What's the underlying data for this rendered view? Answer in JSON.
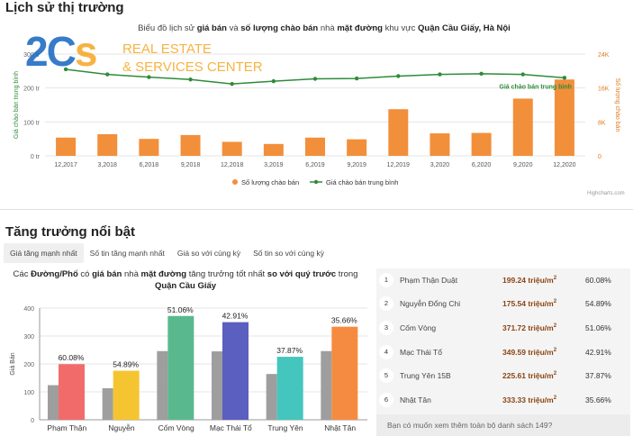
{
  "section1": {
    "title": "Lịch sử thị trường",
    "chart_title_parts": [
      "Biểu đồ lịch sử ",
      "giá bán",
      " và ",
      "số lượng chào bán",
      " nhà ",
      "mặt đường",
      " khu vực ",
      "Quận Cầu Giấy, Hà Nội"
    ],
    "credit": "Highcharts.com"
  },
  "logo": {
    "big_a": "2C",
    "big_b": "s",
    "line1": "REAL ESTATE",
    "line2": "& SERVICES CENTER"
  },
  "section2": {
    "title": "Tăng trưởng nổi bật",
    "tabs": [
      "Giá tăng mạnh nhất",
      "Số tin tăng mạnh nhất",
      "Giá so với cùng kỳ",
      "Số tin so với cùng kỳ"
    ],
    "desc_parts": [
      "Các ",
      "Đường/Phố",
      " có ",
      "giá bán",
      " nhà ",
      "mặt đường",
      " tăng trưởng tốt nhất ",
      "so với quý trước",
      " trong"
    ],
    "desc_line2": "Quận Cầu Giấy",
    "ranking": [
      {
        "rank": "1",
        "name": "Phạm Thận Duật",
        "price": "199.24 triệu/m",
        "pct": "60.08%"
      },
      {
        "rank": "2",
        "name": "Nguyễn Đổng Chi",
        "price": "175.54 triệu/m",
        "pct": "54.89%"
      },
      {
        "rank": "3",
        "name": "Cốm Vòng",
        "price": "371.72 triệu/m",
        "pct": "51.06%"
      },
      {
        "rank": "4",
        "name": "Mạc Thái Tổ",
        "price": "349.59 triệu/m",
        "pct": "42.91%"
      },
      {
        "rank": "5",
        "name": "Trung Yên 15B",
        "price": "225.61 triệu/m",
        "pct": "37.87%"
      },
      {
        "rank": "6",
        "name": "Nhật Tân",
        "price": "333.33 triệu/m",
        "pct": "35.66%"
      }
    ],
    "sup": "2",
    "ranking_footer": "Bạn có muốn xem thêm toàn bộ danh sách 149?"
  },
  "chart_data": [
    {
      "type": "bar+line",
      "title": "Biểu đồ lịch sử giá bán và số lượng chào bán nhà mặt đường khu vực Quận Cầu Giấy, Hà Nội",
      "categories": [
        "12,2017",
        "3,2018",
        "6,2018",
        "9,2018",
        "12,2018",
        "3,2019",
        "6,2019",
        "9,2019",
        "12,2019",
        "3,2020",
        "6,2020",
        "9,2020",
        "12,2020"
      ],
      "left_axis": {
        "label": "Giá chào bán trung bình",
        "ticks": [
          "0 tr",
          "100 tr",
          "200 tr",
          "300 tr"
        ],
        "range": [
          0,
          300
        ]
      },
      "right_axis": {
        "label": "Số lượng chào bán",
        "ticks": [
          "0",
          "8K",
          "16K",
          "24K"
        ],
        "range": [
          0,
          24000
        ]
      },
      "series": [
        {
          "name": "Số lượng chào bán",
          "type": "bar",
          "axis": "right",
          "color": "#f28f3b",
          "values": [
            4300,
            5100,
            4000,
            4900,
            3300,
            2800,
            4300,
            3900,
            11000,
            5300,
            5400,
            13500,
            18000
          ]
        },
        {
          "name": "Giá chào bán trung bình",
          "type": "line",
          "axis": "left",
          "color": "#2e8b3a",
          "values": [
            255,
            240,
            232,
            225,
            212,
            220,
            227,
            228,
            235,
            240,
            242,
            240,
            230
          ]
        }
      ],
      "series_label": "Giá chào bán trung bình",
      "legend": "bottom-center"
    },
    {
      "type": "bar",
      "categories": [
        "Phạm Thận",
        "Nguyễn",
        "Cốm Vòng",
        "Mạc Thái Tổ",
        "Trung Yên",
        "Nhật Tân"
      ],
      "ylabel": "Giá Bán",
      "ylim": [
        0,
        400
      ],
      "y_ticks": [
        "0",
        "100",
        "200",
        "300",
        "400"
      ],
      "series": [
        {
          "name": "previous",
          "color": "#9e9e9e",
          "values": [
            124,
            113,
            246,
            245,
            164,
            246
          ]
        },
        {
          "name": "current",
          "values": [
            199.24,
            175.54,
            371.72,
            349.59,
            225.61,
            333.33
          ]
        }
      ],
      "bar_colors": [
        "#f26b6b",
        "#f5c531",
        "#5ab88f",
        "#5b5fbf",
        "#44c6be",
        "#f58b40"
      ],
      "labels": [
        "60.08%",
        "54.89%",
        "51.06%",
        "42.91%",
        "37.87%",
        "35.66%"
      ]
    }
  ]
}
